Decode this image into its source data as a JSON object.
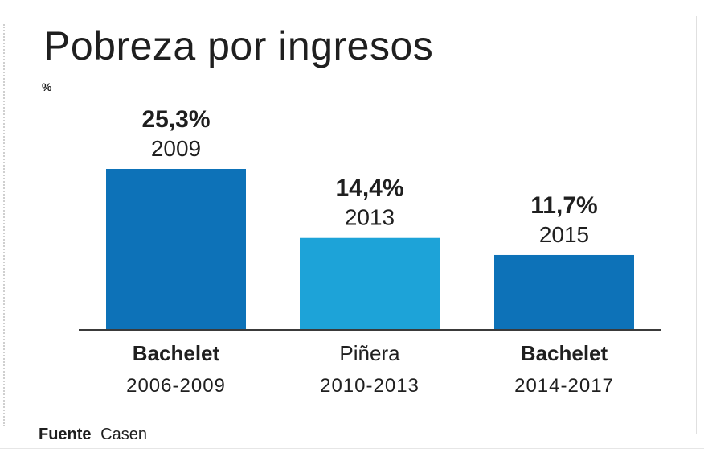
{
  "chart_data": {
    "type": "bar",
    "title": "Pobreza por ingresos",
    "unit_label": "%",
    "series": [
      {
        "values": [
          25.3,
          14.4,
          11.7
        ]
      }
    ],
    "bars": [
      {
        "value_label": "25,3%",
        "year": "2009",
        "president": "Bachelet",
        "period": "2006-2009",
        "president_bold": true,
        "color": "#0d72b8"
      },
      {
        "value_label": "14,4%",
        "year": "2013",
        "president": "Piñera",
        "period": "2010-2013",
        "president_bold": false,
        "color": "#1da3d8"
      },
      {
        "value_label": "11,7%",
        "year": "2015",
        "president": "Bachelet",
        "period": "2014-2017",
        "president_bold": true,
        "color": "#0d72b8"
      }
    ],
    "ylim": [
      0,
      25.3
    ],
    "grid": false,
    "legend": "none"
  },
  "source": {
    "label": "Fuente",
    "value": "Casen"
  }
}
